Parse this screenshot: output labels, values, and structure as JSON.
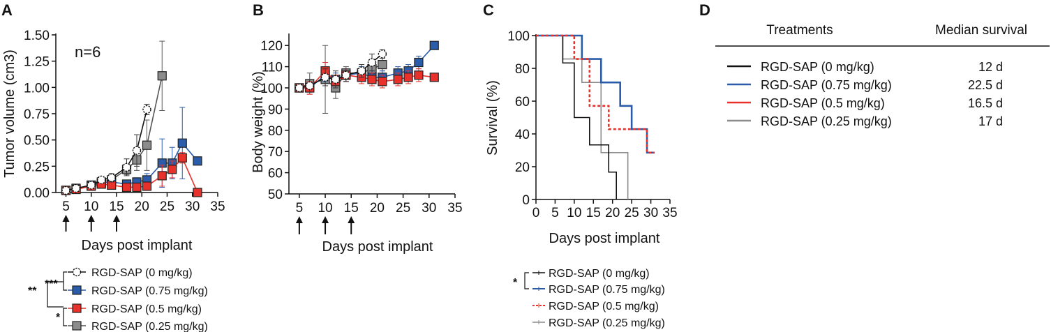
{
  "panels": [
    "A",
    "B",
    "C",
    "D"
  ],
  "colors": {
    "black": "#111111",
    "blue": "#2a5caa",
    "red": "#e8312b",
    "gray": "#8c8c8c",
    "open": "#ffffff"
  },
  "chart_data": [
    {
      "id": "A",
      "type": "line",
      "title": "",
      "xlabel": "Days post implant",
      "ylabel": "Tumor volume (cm3)",
      "xlim": [
        3,
        35
      ],
      "ylim": [
        0,
        1.5
      ],
      "xticks": [
        5,
        10,
        15,
        20,
        25,
        30,
        35
      ],
      "yticks": [
        0.0,
        0.25,
        0.5,
        0.75,
        1.0,
        1.25,
        1.5
      ],
      "ytick_labels": [
        "0.00",
        "0.25",
        "0.50",
        "0.75",
        "1.00",
        "1.25",
        "1.50"
      ],
      "annotation": "n=6",
      "dosing_days": [
        5,
        10,
        15
      ],
      "series": [
        {
          "name": "RGD-SAP (0 mg/kg)",
          "color": "black",
          "marker": "open-circle",
          "x": [
            5,
            7,
            10,
            12,
            14,
            17,
            19,
            21
          ],
          "y": [
            0.02,
            0.04,
            0.07,
            0.12,
            0.14,
            0.24,
            0.4,
            0.79
          ],
          "err": [
            0.0,
            0.01,
            0.02,
            0.03,
            0.04,
            0.08,
            0.15,
            0.05
          ]
        },
        {
          "name": "RGD-SAP (0.75 mg/kg)",
          "color": "blue",
          "marker": "square",
          "x": [
            5,
            7,
            10,
            12,
            14,
            17,
            19,
            21,
            24,
            26,
            28,
            31
          ],
          "y": [
            0.02,
            0.03,
            0.07,
            0.09,
            0.1,
            0.08,
            0.1,
            0.12,
            0.28,
            0.28,
            0.47,
            0.3
          ],
          "err": [
            0.0,
            0.01,
            0.02,
            0.03,
            0.03,
            0.03,
            0.04,
            0.06,
            0.23,
            0.15,
            0.34,
            0.0
          ]
        },
        {
          "name": "RGD-SAP (0.5 mg/kg)",
          "color": "red",
          "marker": "square",
          "x": [
            5,
            7,
            10,
            12,
            14,
            17,
            19,
            21,
            24,
            26,
            28,
            31
          ],
          "y": [
            0.02,
            0.03,
            0.06,
            0.08,
            0.07,
            0.05,
            0.05,
            0.06,
            0.16,
            0.22,
            0.33,
            0.0
          ],
          "err": [
            0.0,
            0.01,
            0.02,
            0.02,
            0.03,
            0.03,
            0.03,
            0.04,
            0.1,
            0.08,
            0.05,
            0.0
          ]
        },
        {
          "name": "RGD-SAP (0.25 mg/kg)",
          "color": "gray",
          "marker": "square",
          "x": [
            5,
            7,
            10,
            12,
            14,
            17,
            19,
            21,
            24
          ],
          "y": [
            0.02,
            0.04,
            0.07,
            0.1,
            0.12,
            0.22,
            0.31,
            0.45,
            1.11
          ],
          "err": [
            0.0,
            0.01,
            0.02,
            0.03,
            0.04,
            0.05,
            0.1,
            0.24,
            0.33
          ]
        }
      ],
      "significance": [
        "**",
        "***",
        "*"
      ]
    },
    {
      "id": "B",
      "type": "line",
      "title": "",
      "xlabel": "Days post implant",
      "ylabel": "Body weight (%)",
      "xlim": [
        3,
        35
      ],
      "ylim": [
        50,
        125
      ],
      "xticks": [
        5,
        10,
        15,
        20,
        25,
        30,
        35
      ],
      "yticks": [
        50,
        60,
        70,
        80,
        90,
        100,
        110,
        120
      ],
      "ytick_labels": [
        "50",
        "60",
        "70",
        "80",
        "90",
        "100",
        "110",
        "120"
      ],
      "dosing_days": [
        5,
        10,
        15
      ],
      "series": [
        {
          "name": "RGD-SAP (0 mg/kg)",
          "color": "black",
          "marker": "open-circle",
          "x": [
            5,
            7,
            10,
            12,
            14,
            17,
            19,
            21
          ],
          "y": [
            100,
            101,
            105,
            104,
            106,
            108,
            112,
            116
          ],
          "err": [
            0,
            3,
            4,
            4,
            3,
            3,
            4,
            2
          ]
        },
        {
          "name": "RGD-SAP (0.75 mg/kg)",
          "color": "blue",
          "marker": "square",
          "x": [
            5,
            7,
            10,
            12,
            14,
            17,
            19,
            21,
            24,
            26,
            28,
            31
          ],
          "y": [
            100,
            100,
            106,
            104,
            106,
            107,
            105,
            105,
            107,
            108,
            112,
            120
          ],
          "err": [
            0,
            2,
            3,
            3,
            3,
            3,
            3,
            3,
            3,
            3,
            3,
            0
          ]
        },
        {
          "name": "RGD-SAP (0.5 mg/kg)",
          "color": "red",
          "marker": "square",
          "x": [
            5,
            7,
            10,
            12,
            14,
            17,
            19,
            21,
            24,
            26,
            28,
            31
          ],
          "y": [
            100,
            100,
            108,
            103,
            106,
            105,
            104,
            103,
            104,
            105,
            106,
            105
          ],
          "err": [
            0,
            3,
            4,
            3,
            3,
            3,
            3,
            3,
            3,
            3,
            3,
            0
          ]
        },
        {
          "name": "RGD-SAP (0.25 mg/kg)",
          "color": "gray",
          "marker": "square",
          "x": [
            5,
            7,
            10,
            12,
            14,
            17,
            19,
            21
          ],
          "y": [
            100,
            102,
            104,
            100,
            107,
            107,
            109,
            111
          ],
          "err": [
            0,
            5,
            16,
            5,
            3,
            3,
            3,
            3
          ]
        }
      ]
    },
    {
      "id": "C",
      "type": "line",
      "title": "",
      "xlabel": "Days post implant",
      "ylabel": "Survival (%)",
      "xlim": [
        0,
        35
      ],
      "ylim": [
        0,
        100
      ],
      "xticks": [
        0,
        5,
        10,
        15,
        20,
        25,
        30,
        35
      ],
      "yticks": [
        0,
        20,
        40,
        60,
        80,
        100
      ],
      "ytick_labels": [
        "0",
        "20",
        "40",
        "60",
        "80",
        "100"
      ],
      "series": [
        {
          "name": "RGD-SAP (0 mg/kg)",
          "color": "black",
          "style": "step",
          "x": [
            0,
            7,
            10,
            14,
            19,
            21
          ],
          "y": [
            100,
            83.3,
            50,
            33.3,
            16.7,
            0
          ]
        },
        {
          "name": "RGD-SAP (0.75 mg/kg)",
          "color": "blue",
          "style": "step",
          "x": [
            0,
            12,
            17,
            22,
            25,
            29,
            31
          ],
          "y": [
            100,
            85.7,
            71.4,
            57.1,
            42.9,
            28.6,
            28.6
          ]
        },
        {
          "name": "RGD-SAP (0.5 mg/kg)",
          "color": "red",
          "style": "step-dashed",
          "x": [
            0,
            10,
            14,
            19,
            29,
            31
          ],
          "y": [
            100,
            85.7,
            57.1,
            42.9,
            28.6,
            28.6
          ]
        },
        {
          "name": "RGD-SAP (0.25 mg/kg)",
          "color": "gray",
          "style": "step",
          "x": [
            0,
            7,
            12,
            17,
            24
          ],
          "y": [
            100,
            85.7,
            71.4,
            28.6,
            0
          ]
        }
      ],
      "significance": [
        "*"
      ]
    },
    {
      "id": "D",
      "type": "table",
      "columns": [
        "Treatments",
        "Median survival"
      ],
      "rows": [
        {
          "treatment": "RGD-SAP (0 mg/kg)",
          "median": "12 d",
          "color": "black"
        },
        {
          "treatment": "RGD-SAP (0.75 mg/kg)",
          "median": "22.5 d",
          "color": "blue"
        },
        {
          "treatment": "RGD-SAP (0.5 mg/kg)",
          "median": "16.5 d",
          "color": "red"
        },
        {
          "treatment": "RGD-SAP (0.25 mg/kg)",
          "median": "17 d",
          "color": "gray"
        }
      ]
    }
  ]
}
